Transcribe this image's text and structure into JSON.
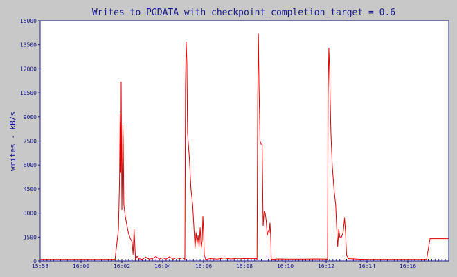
{
  "colors": {
    "background": "#c8c8c8",
    "plot_background": "#ffffff",
    "axis": "#1a1a8c",
    "series": "#e00000",
    "title_text": "#1a1a8c"
  },
  "chart_data": {
    "type": "line",
    "title": "Writes to PGDATA with checkpoint_completion_target = 0.6",
    "xlabel": "",
    "ylabel": "writes - kB/s",
    "xlim": [
      "15:58",
      "16:18"
    ],
    "ylim": [
      0,
      15000
    ],
    "grid": false,
    "legend": "none",
    "x_ticks": [
      "15:58",
      "16:00",
      "16:02",
      "16:04",
      "16:06",
      "16:08",
      "16:10",
      "16:12",
      "16:14",
      "16:16"
    ],
    "y_ticks": [
      "0",
      "1500",
      "3000",
      "4500",
      "6000",
      "7500",
      "9000",
      "10500",
      "12000",
      "13500",
      "15000"
    ],
    "series": [
      {
        "name": "",
        "points": [
          [
            "15:58:00",
            100
          ],
          [
            "16:01:40",
            100
          ],
          [
            "16:01:50",
            2000
          ],
          [
            "16:01:53",
            5000
          ],
          [
            "16:01:55",
            9200
          ],
          [
            "16:01:57",
            5500
          ],
          [
            "16:01:58",
            11200
          ],
          [
            "16:02:00",
            3200
          ],
          [
            "16:02:03",
            8500
          ],
          [
            "16:02:04",
            7500
          ],
          [
            "16:02:06",
            3500
          ],
          [
            "16:02:10",
            2800
          ],
          [
            "16:02:15",
            2200
          ],
          [
            "16:02:20",
            1700
          ],
          [
            "16:02:25",
            1400
          ],
          [
            "16:02:30",
            1200
          ],
          [
            "16:02:33",
            400
          ],
          [
            "16:02:36",
            2000
          ],
          [
            "16:02:40",
            100
          ],
          [
            "16:02:45",
            300
          ],
          [
            "16:02:50",
            150
          ],
          [
            "16:03:00",
            100
          ],
          [
            "16:03:10",
            250
          ],
          [
            "16:03:20",
            120
          ],
          [
            "16:03:30",
            150
          ],
          [
            "16:03:40",
            280
          ],
          [
            "16:03:50",
            120
          ],
          [
            "16:04:00",
            200
          ],
          [
            "16:04:10",
            120
          ],
          [
            "16:04:20",
            260
          ],
          [
            "16:04:30",
            120
          ],
          [
            "16:04:40",
            200
          ],
          [
            "16:04:50",
            150
          ],
          [
            "16:05:00",
            200
          ],
          [
            "16:05:03",
            150
          ],
          [
            "16:05:05",
            100
          ],
          [
            "16:05:07",
            11000
          ],
          [
            "16:05:09",
            13700
          ],
          [
            "16:05:11",
            12400
          ],
          [
            "16:05:13",
            8000
          ],
          [
            "16:05:18",
            6500
          ],
          [
            "16:05:23",
            4500
          ],
          [
            "16:05:28",
            3500
          ],
          [
            "16:05:32",
            2000
          ],
          [
            "16:05:35",
            800
          ],
          [
            "16:05:38",
            1800
          ],
          [
            "16:05:41",
            1100
          ],
          [
            "16:05:44",
            1600
          ],
          [
            "16:05:47",
            900
          ],
          [
            "16:05:50",
            2100
          ],
          [
            "16:05:53",
            800
          ],
          [
            "16:05:56",
            1300
          ],
          [
            "16:05:58",
            2800
          ],
          [
            "16:06:00",
            1800
          ],
          [
            "16:06:02",
            400
          ],
          [
            "16:06:06",
            100
          ],
          [
            "16:06:20",
            150
          ],
          [
            "16:06:40",
            120
          ],
          [
            "16:07:00",
            180
          ],
          [
            "16:07:20",
            130
          ],
          [
            "16:07:40",
            170
          ],
          [
            "16:08:00",
            150
          ],
          [
            "16:08:20",
            160
          ],
          [
            "16:08:35",
            150
          ],
          [
            "16:08:37",
            100
          ],
          [
            "16:08:39",
            10200
          ],
          [
            "16:08:41",
            14200
          ],
          [
            "16:08:43",
            10800
          ],
          [
            "16:08:46",
            7500
          ],
          [
            "16:08:49",
            7300
          ],
          [
            "16:08:52",
            7300
          ],
          [
            "16:08:55",
            2200
          ],
          [
            "16:08:58",
            3100
          ],
          [
            "16:09:01",
            3000
          ],
          [
            "16:09:04",
            2500
          ],
          [
            "16:09:07",
            1600
          ],
          [
            "16:09:10",
            1900
          ],
          [
            "16:09:13",
            1800
          ],
          [
            "16:09:15",
            2400
          ],
          [
            "16:09:17",
            1600
          ],
          [
            "16:09:19",
            100
          ],
          [
            "16:09:40",
            130
          ],
          [
            "16:10:00",
            120
          ],
          [
            "16:10:30",
            120
          ],
          [
            "16:11:00",
            120
          ],
          [
            "16:11:30",
            130
          ],
          [
            "16:12:00",
            120
          ],
          [
            "16:12:04",
            100
          ],
          [
            "16:12:06",
            10500
          ],
          [
            "16:12:08",
            13300
          ],
          [
            "16:12:10",
            12000
          ],
          [
            "16:12:14",
            8000
          ],
          [
            "16:12:18",
            6000
          ],
          [
            "16:12:23",
            4500
          ],
          [
            "16:12:28",
            3500
          ],
          [
            "16:12:32",
            1600
          ],
          [
            "16:12:34",
            900
          ],
          [
            "16:12:37",
            2000
          ],
          [
            "16:12:40",
            1500
          ],
          [
            "16:12:45",
            1500
          ],
          [
            "16:12:50",
            1800
          ],
          [
            "16:12:54",
            2700
          ],
          [
            "16:12:57",
            1800
          ],
          [
            "16:13:00",
            400
          ],
          [
            "16:13:05",
            150
          ],
          [
            "16:13:30",
            120
          ],
          [
            "16:14:00",
            100
          ],
          [
            "16:15:00",
            100
          ],
          [
            "16:16:00",
            100
          ],
          [
            "16:16:55",
            100
          ],
          [
            "16:17:05",
            1400
          ],
          [
            "16:18:00",
            1400
          ]
        ]
      }
    ]
  }
}
